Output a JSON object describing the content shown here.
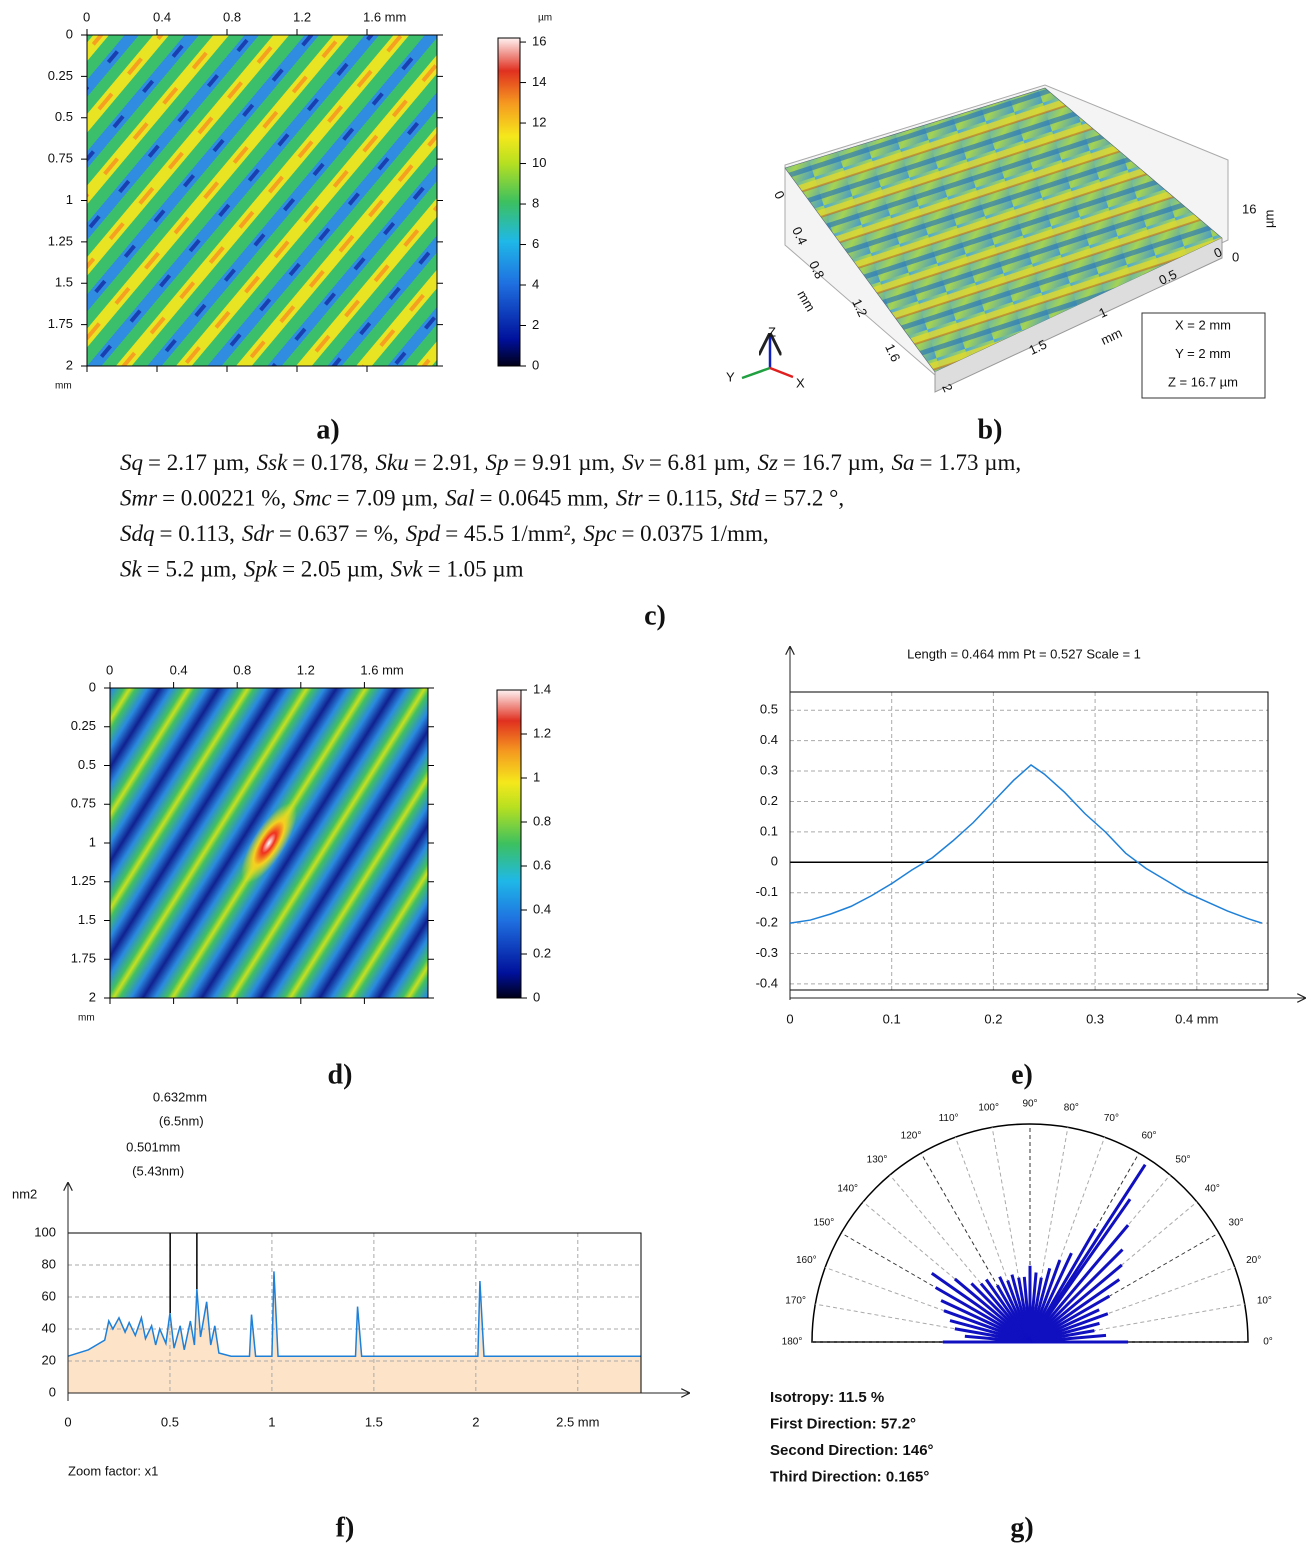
{
  "chart_data": [
    {
      "type": "heatmap",
      "panel_label": "a)",
      "xlim": [
        0,
        2
      ],
      "xticks": [
        0,
        0.4,
        0.8,
        1.2,
        {
          "value": 1.6,
          "label": "1.6 mm"
        }
      ],
      "ylim": [
        0,
        2
      ],
      "yticks": [
        0,
        0.25,
        0.5,
        0.75,
        1,
        1.25,
        1.5,
        1.75,
        2
      ],
      "y_unit": "mm",
      "colorbar": {
        "unit": "µm",
        "lim": [
          0,
          16.2
        ],
        "ticks": [
          0,
          2,
          4,
          6,
          8,
          10,
          12,
          14,
          16
        ]
      }
    },
    {
      "type": "heatmap",
      "panel_label": "d)",
      "xlim": [
        0,
        2
      ],
      "xticks": [
        0,
        0.4,
        0.8,
        1.2,
        {
          "value": 1.6,
          "label": "1.6 mm"
        }
      ],
      "ylim": [
        0,
        2
      ],
      "yticks": [
        0,
        0.25,
        0.5,
        0.75,
        1,
        1.25,
        1.5,
        1.75,
        2
      ],
      "y_unit": "mm",
      "colorbar": {
        "lim": [
          0,
          1.4
        ],
        "ticks": [
          0,
          0.2,
          0.4,
          0.6,
          0.8,
          1,
          1.2,
          1.4
        ]
      }
    },
    {
      "type": "line",
      "panel_label": "e)",
      "title": "Length = 0.464 mm  Pt = 0.527    Scale = 1",
      "xlim": [
        0,
        0.47
      ],
      "xticks": [
        0,
        0.1,
        0.2,
        0.3,
        {
          "value": 0.4,
          "label": "0.4 mm"
        }
      ],
      "ylim": [
        -0.42,
        0.56
      ],
      "yticks": [
        -0.4,
        -0.3,
        -0.2,
        -0.1,
        0,
        0.1,
        0.2,
        0.3,
        0.4,
        0.5
      ],
      "grid": true,
      "x": [
        0,
        0.02,
        0.04,
        0.06,
        0.08,
        0.1,
        0.12,
        0.14,
        0.16,
        0.18,
        0.2,
        0.22,
        0.237,
        0.25,
        0.27,
        0.29,
        0.31,
        0.33,
        0.35,
        0.37,
        0.39,
        0.41,
        0.43,
        0.45,
        0.464
      ],
      "series": [
        {
          "color": "#1f80d8",
          "values": [
            -0.2,
            -0.19,
            -0.17,
            -0.145,
            -0.11,
            -0.07,
            -0.025,
            0.015,
            0.07,
            0.13,
            0.2,
            0.27,
            0.32,
            0.29,
            0.23,
            0.16,
            0.1,
            0.03,
            -0.02,
            -0.06,
            -0.1,
            -0.13,
            -0.16,
            -0.185,
            -0.2
          ]
        }
      ]
    },
    {
      "type": "area",
      "panel_label": "f)",
      "y_label": "nm2",
      "note": "Zoom factor: x1",
      "xlim": [
        0,
        2.81
      ],
      "xticks": [
        0,
        0.5,
        1,
        1.5,
        2,
        {
          "value": 2.5,
          "label": "2.5 mm"
        }
      ],
      "ylim": [
        0,
        100
      ],
      "yticks": [
        0,
        20,
        40,
        60,
        80,
        100
      ],
      "grid": true,
      "x": [
        0,
        0.1,
        0.18,
        0.2,
        0.22,
        0.25,
        0.28,
        0.3,
        0.33,
        0.36,
        0.38,
        0.41,
        0.43,
        0.45,
        0.48,
        0.5,
        0.52,
        0.55,
        0.57,
        0.6,
        0.62,
        0.632,
        0.65,
        0.68,
        0.7,
        0.72,
        0.74,
        0.8,
        0.89,
        0.9,
        0.92,
        1.0,
        1.01,
        1.03,
        1.41,
        1.42,
        1.44,
        2.01,
        2.02,
        2.04,
        2.81
      ],
      "series": [
        {
          "color": "#1f80d8",
          "fill": "#fde3c8",
          "values": [
            23,
            27,
            33,
            45,
            40,
            47,
            38,
            44,
            36,
            47,
            34,
            42,
            30,
            40,
            31,
            50,
            28,
            42,
            27,
            45,
            30,
            65,
            35,
            57,
            30,
            42,
            25,
            23,
            23,
            49,
            23,
            23,
            76,
            23,
            23,
            54,
            23,
            23,
            70,
            23,
            23
          ]
        }
      ],
      "markers": [
        {
          "x": 0.632,
          "label": "0.632mm",
          "sub": "(6.5nm)"
        },
        {
          "x": 0.501,
          "label": "0.501mm",
          "sub": "(5.43nm)"
        }
      ]
    },
    {
      "type": "rose",
      "panel_label": "g)",
      "rlim": [
        0,
        1
      ],
      "color": "#1010c0",
      "angle_ticks": [
        {
          "value": 0,
          "label": "0°"
        },
        {
          "value": 10,
          "label": "10°"
        },
        {
          "value": 20,
          "label": "20°"
        },
        {
          "value": 30,
          "label": "30°"
        },
        {
          "value": 40,
          "label": "40°"
        },
        {
          "value": 50,
          "label": "50°"
        },
        {
          "value": 60,
          "label": "60°"
        },
        {
          "value": 70,
          "label": "70°"
        },
        {
          "value": 80,
          "label": "80°"
        },
        {
          "value": 90,
          "label": "90°"
        },
        {
          "value": 100,
          "label": "100°"
        },
        {
          "value": 110,
          "label": "110°"
        },
        {
          "value": 120,
          "label": "120°"
        },
        {
          "value": 130,
          "label": "130°"
        },
        {
          "value": 140,
          "label": "140°"
        },
        {
          "value": 150,
          "label": "150°"
        },
        {
          "value": 160,
          "label": "160°"
        },
        {
          "value": 170,
          "label": "170°"
        },
        {
          "value": 180,
          "label": "180°"
        }
      ],
      "angles": [
        0,
        5,
        10,
        15,
        20,
        25,
        30,
        35,
        40,
        45,
        50,
        55,
        57,
        60,
        65,
        70,
        75,
        80,
        85,
        90,
        95,
        100,
        105,
        110,
        115,
        120,
        125,
        130,
        135,
        140,
        145,
        150,
        155,
        160,
        165,
        170,
        175,
        180
      ],
      "values": [
        0.45,
        0.35,
        0.3,
        0.33,
        0.38,
        0.35,
        0.42,
        0.5,
        0.55,
        0.6,
        0.7,
        0.8,
        0.97,
        0.6,
        0.45,
        0.4,
        0.35,
        0.3,
        0.32,
        0.35,
        0.3,
        0.3,
        0.32,
        0.3,
        0.33,
        0.3,
        0.35,
        0.35,
        0.38,
        0.45,
        0.55,
        0.5,
        0.45,
        0.42,
        0.38,
        0.35,
        0.3,
        0.4
      ],
      "stats": [
        "Isotropy: 11.5 %",
        "First Direction: 57.2°",
        "Second Direction: 146°",
        "Third Direction: 0.165°"
      ]
    }
  ],
  "figure": {
    "b": {
      "panel_label": "b)",
      "x_axis": [
        "0",
        "0.4",
        "0.8",
        "1.2",
        "1.6",
        "2"
      ],
      "x_unit": "mm",
      "y_axis": [
        "0",
        "0.5",
        "1",
        "1.5"
      ],
      "y_unit": "mm",
      "z_axis": [
        "0",
        "16"
      ],
      "z_unit": "µm",
      "box": [
        "X = 2 mm",
        "Y = 2 mm",
        "Z = 16.7 µm"
      ],
      "triad": [
        "Z",
        "Y",
        "X"
      ]
    },
    "c": {
      "panel_label": "c)",
      "lines": [
        [
          {
            "name": "Sq",
            "value": "= 2.17 µm,"
          },
          {
            "name": "Ssk",
            "value": "= 0.178,"
          },
          {
            "name": "Sku",
            "value": "= 2.91,"
          },
          {
            "name": "Sp",
            "value": "= 9.91 µm,"
          },
          {
            "name": "Sv",
            "value": "= 6.81 µm,"
          },
          {
            "name": "Sz",
            "value": "= 16.7 µm,"
          },
          {
            "name": "Sa",
            "value": "= 1.73 µm,"
          }
        ],
        [
          {
            "name": "Smr",
            "value": "= 0.00221 %,"
          },
          {
            "name": "Smc",
            "value": "= 7.09 µm,"
          },
          {
            "name": "Sal",
            "value": "= 0.0645 mm,"
          },
          {
            "name": "Str",
            "value": "= 0.115,"
          },
          {
            "name": "Std",
            "value": "= 57.2 °,"
          }
        ],
        [
          {
            "name": "Sdq",
            "value": "= 0.113,"
          },
          {
            "name": "Sdr",
            "value": "= 0.637 = %,"
          },
          {
            "name": "Spd",
            "value": "= 45.5 1/mm²,"
          },
          {
            "name": "Spc",
            "value": "= 0.0375 1/mm,"
          }
        ],
        [
          {
            "name": "Sk",
            "value": "= 5.2 µm,"
          },
          {
            "name": "Spk",
            "value": "= 2.05 µm,"
          },
          {
            "name": "Svk",
            "value": "= 1.05 µm"
          }
        ]
      ]
    }
  }
}
